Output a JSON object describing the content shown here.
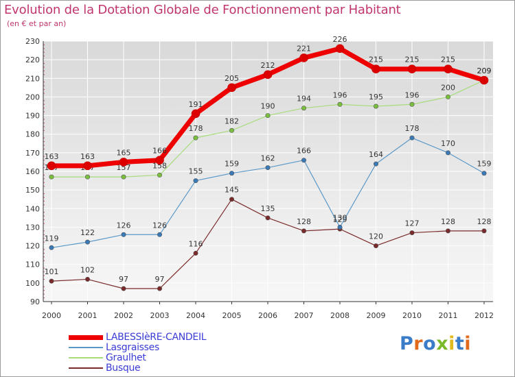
{
  "title": "Evolution de la Dotation Globale de Fonctionnement par Habitant",
  "subtitle": "(en € et par an)",
  "logo_text": "Proxiti",
  "chart_data": {
    "type": "line",
    "x": [
      "2000",
      "2001",
      "2002",
      "2003",
      "2004",
      "2005",
      "2006",
      "2007",
      "2008",
      "2009",
      "2010",
      "2011",
      "2012"
    ],
    "ylim": [
      90,
      230
    ],
    "yticks": [
      90,
      100,
      110,
      120,
      130,
      140,
      150,
      160,
      170,
      180,
      190,
      200,
      210,
      220,
      230
    ],
    "grid": true,
    "legend_position": "bottom-left",
    "series": [
      {
        "name": "Busque",
        "color": "#7a2a2a",
        "marker": "#7a2a2a",
        "width": 1.2,
        "values": [
          101,
          102,
          97,
          97,
          116,
          145,
          135,
          128,
          129,
          120,
          127,
          128,
          128
        ],
        "labels": [
          "101",
          "102",
          "97",
          "97",
          "116",
          "145",
          "135",
          "128",
          "129",
          "120",
          "127",
          "128",
          "128"
        ]
      },
      {
        "name": "Graulhet",
        "color": "#a6dc7a",
        "marker": "#7ac03e",
        "width": 1.2,
        "values": [
          157,
          157,
          157,
          158,
          178,
          182,
          190,
          194,
          196,
          195,
          196,
          200,
          209
        ],
        "labels": [
          "157",
          "157",
          "157",
          "158",
          "178",
          "182",
          "190",
          "194",
          "196",
          "195",
          "196",
          "200",
          "209"
        ]
      },
      {
        "name": "Lasgraisses",
        "color": "#5a98c8",
        "marker": "#3a7ab8",
        "width": 1.2,
        "values": [
          119,
          122,
          126,
          126,
          155,
          159,
          162,
          166,
          130,
          164,
          178,
          170,
          159
        ],
        "labels": [
          "119",
          "122",
          "126",
          "126",
          "155",
          "159",
          "162",
          "166",
          "130",
          "164",
          "178",
          "170",
          "159"
        ]
      },
      {
        "name": "LABESSIèRE-CANDEIL",
        "color": "#ee0000",
        "marker": "#dd0000",
        "width": 7,
        "values": [
          163,
          163,
          165,
          166,
          191,
          205,
          212,
          221,
          226,
          215,
          215,
          215,
          209
        ],
        "labels": [
          "163",
          "163",
          "165",
          "166",
          "191",
          "205",
          "212",
          "221",
          "226",
          "215",
          "215",
          "215",
          "209"
        ]
      }
    ],
    "legend": [
      "LABESSIèRE-CANDEIL",
      "Lasgraisses",
      "Graulhet",
      "Busque"
    ]
  }
}
